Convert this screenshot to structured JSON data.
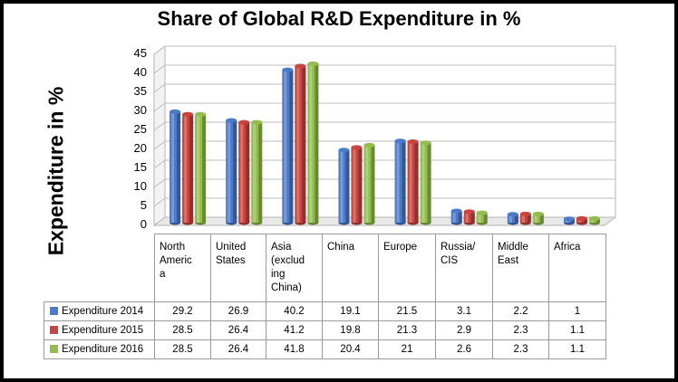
{
  "chart_data": {
    "type": "bar",
    "title": "Share of Global R&D Expenditure in %",
    "ylabel": "Expenditure in %",
    "xlabel": "",
    "ylim": [
      0,
      45
    ],
    "yticks": [
      "0",
      "5",
      "10",
      "15",
      "20",
      "25",
      "30",
      "35",
      "40",
      "45"
    ],
    "grid": true,
    "legend": "table-left",
    "categories": [
      "North America",
      "United States",
      "Asia (excluding China)",
      "China",
      "Europe",
      "Russia/ CIS",
      "Middle East",
      "Africa"
    ],
    "series": [
      {
        "name": "Expenditure 2014",
        "color": "#4a7ac9",
        "values": [
          29.2,
          26.9,
          40.2,
          19.1,
          21.5,
          3.1,
          2.2,
          1
        ],
        "labels": [
          "29.2",
          "26.9",
          "40.2",
          "19.1",
          "21.5",
          "3.1",
          "2.2",
          "1"
        ]
      },
      {
        "name": "Expenditure 2015",
        "color": "#c9433f",
        "values": [
          28.5,
          26.4,
          41.2,
          19.8,
          21.3,
          2.9,
          2.3,
          1.1
        ],
        "labels": [
          "28.5",
          "26.4",
          "41.2",
          "19.8",
          "21.3",
          "2.9",
          "2.3",
          "1.1"
        ]
      },
      {
        "name": "Expenditure 2016",
        "color": "#93be4e",
        "values": [
          28.5,
          26.4,
          41.8,
          20.4,
          21,
          2.6,
          2.3,
          1.1
        ],
        "labels": [
          "28.5",
          "26.4",
          "41.8",
          "20.4",
          "21",
          "2.6",
          "2.3",
          "1.1"
        ]
      }
    ]
  },
  "table_headers": [
    "North\nAmeric\na",
    "United\nStates",
    "Asia\n(exclud\ning\nChina)",
    "China",
    "Europe",
    "Russia/\nCIS",
    "Middle\nEast",
    "Africa"
  ]
}
